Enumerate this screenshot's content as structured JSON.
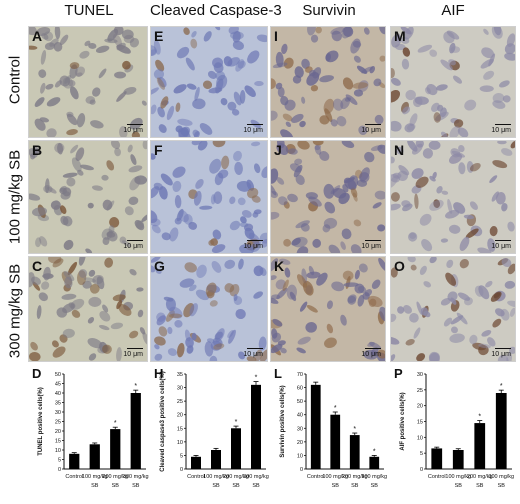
{
  "columns": [
    "TUNEL",
    "Cleaved Caspase-3",
    "Survivin",
    "AIF"
  ],
  "rows": [
    "Control",
    "100 mg/kg SB",
    "300 mg/kg SB"
  ],
  "panel_letters": [
    [
      "A",
      "E",
      "I",
      "M"
    ],
    [
      "B",
      "F",
      "J",
      "N"
    ],
    [
      "C",
      "G",
      "K",
      "O"
    ]
  ],
  "scale_label": "10 μm",
  "panel_colors": {
    "bg": [
      "#c9c8b5",
      "#b9c2d8",
      "#c3b7a6",
      "#cdcbc2"
    ],
    "nuclei": [
      "#7d7a86",
      "#6e78b4",
      "#6a6790",
      "#8d8aa6"
    ],
    "stain": [
      "#7a5638",
      "#8a6a50",
      "#8e6a4a",
      "#6b4630"
    ]
  },
  "chart_data": [
    {
      "type": "bar",
      "letter": "D",
      "ylabel": "TUNEL positive cells(%)",
      "ylim": [
        0,
        50
      ],
      "yticks": [
        0,
        5,
        10,
        15,
        20,
        25,
        30,
        35,
        40,
        45,
        50
      ],
      "categories": [
        "Control",
        "100 mg/kg SB",
        "200 mg/kg SB",
        "300 mg/kg SB"
      ],
      "values": [
        8,
        13,
        21,
        40
      ],
      "errors": [
        0.6,
        0.7,
        1.0,
        1.5
      ],
      "significant": [
        false,
        false,
        true,
        true
      ],
      "sig_mark": "*"
    },
    {
      "type": "bar",
      "letter": "H",
      "ylabel": "Cleaved caspase3 positive cells(%)",
      "ylim": [
        0,
        35
      ],
      "yticks": [
        0,
        5,
        10,
        15,
        20,
        25,
        30,
        35
      ],
      "categories": [
        "Control",
        "100 mg/kg SB",
        "200 mg/kg SB",
        "300 mg/kg SB"
      ],
      "values": [
        4.5,
        7,
        15,
        31
      ],
      "errors": [
        0.5,
        0.6,
        0.8,
        1.2
      ],
      "significant": [
        false,
        false,
        true,
        true
      ],
      "sig_mark": "*"
    },
    {
      "type": "bar",
      "letter": "L",
      "ylabel": "Survivin positive cells(%)",
      "ylim": [
        0,
        70
      ],
      "yticks": [
        0,
        10,
        20,
        30,
        40,
        50,
        60,
        70
      ],
      "categories": [
        "Control",
        "100 mg/kg SB",
        "200 mg/kg SB",
        "300 mg/kg SB"
      ],
      "values": [
        62,
        40,
        25,
        9
      ],
      "errors": [
        2.0,
        2.0,
        1.5,
        1.0
      ],
      "significant": [
        false,
        true,
        true,
        true
      ],
      "sig_mark": "*"
    },
    {
      "type": "bar",
      "letter": "P",
      "ylabel": "AIF positive cells(%)",
      "ylim": [
        0,
        30
      ],
      "yticks": [
        0,
        5,
        10,
        15,
        20,
        25,
        30
      ],
      "categories": [
        "Control",
        "100 mg/kg SB",
        "200 mg/kg SB",
        "300 mg/kg SB"
      ],
      "values": [
        6.5,
        6,
        14.5,
        24
      ],
      "errors": [
        0.4,
        0.4,
        0.8,
        0.9
      ],
      "significant": [
        false,
        false,
        true,
        true
      ],
      "sig_mark": "*"
    }
  ]
}
